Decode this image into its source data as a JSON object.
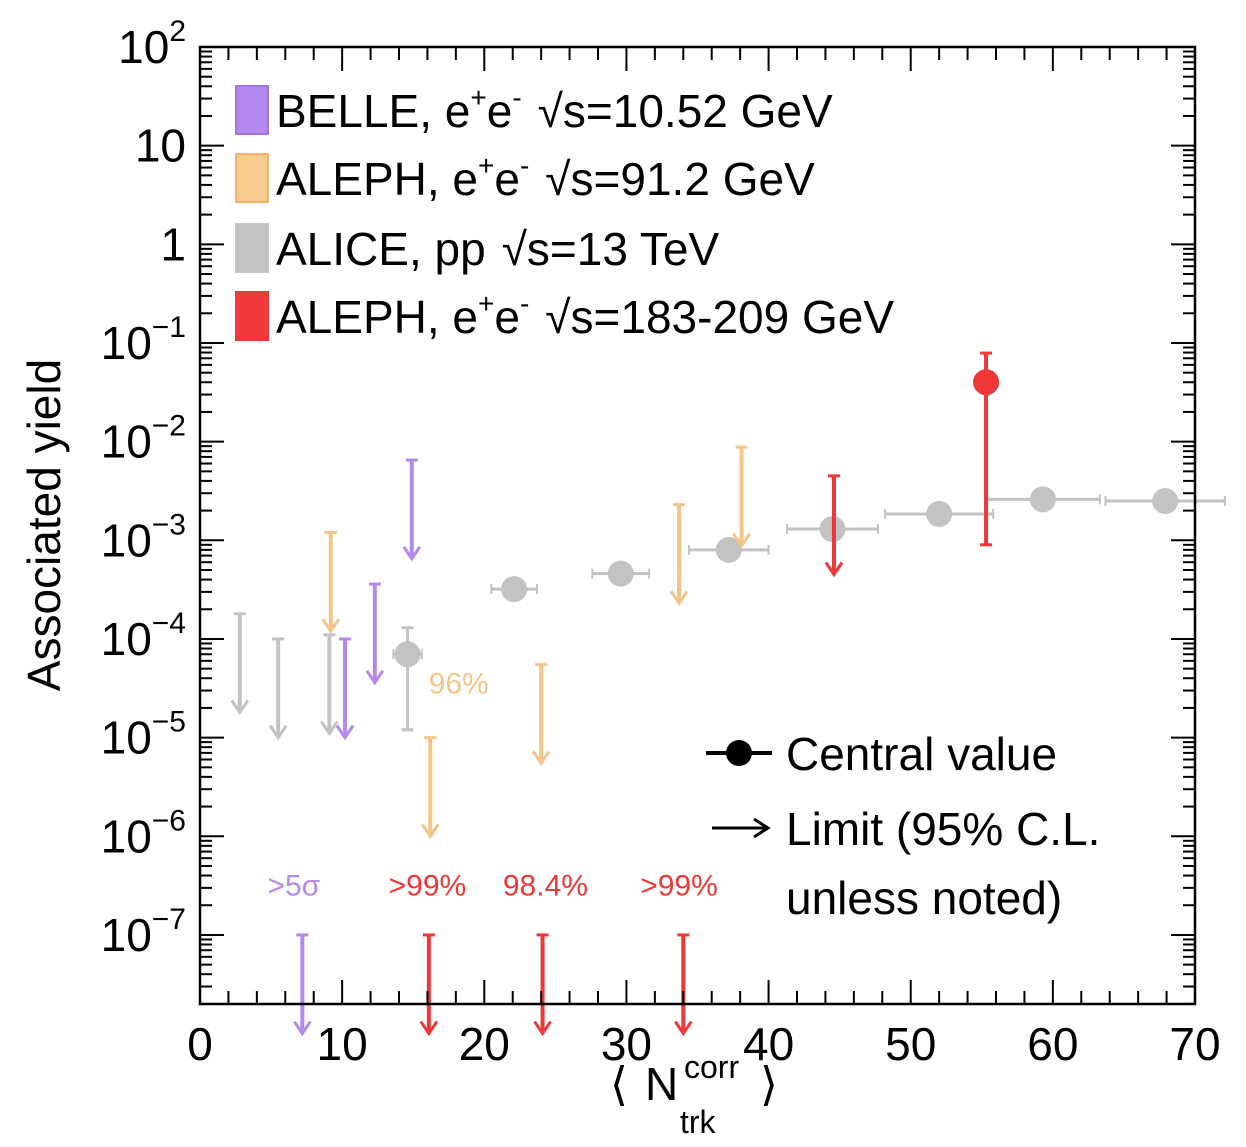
{
  "chart_data": {
    "type": "scatter",
    "title": "",
    "xlabel": "⟨ N_trk^corr ⟩",
    "xlabel_parts": {
      "open": "⟨",
      "main": "N",
      "sup": "corr",
      "sub": "trk",
      "close": "⟩"
    },
    "ylabel": "Associated yield",
    "xlim": [
      0,
      70
    ],
    "ylim_log10": [
      -7.7,
      2
    ],
    "yscale": "log",
    "x_ticks": [
      "0",
      "10",
      "20",
      "30",
      "40",
      "50",
      "60",
      "70"
    ],
    "x_tick_values": [
      0,
      10,
      20,
      30,
      40,
      50,
      60,
      70
    ],
    "y_ticks": [
      {
        "exp": 2,
        "base": "10",
        "sup": "2"
      },
      {
        "exp": 1,
        "base": "10",
        "sup": ""
      },
      {
        "exp": 0,
        "base": "1",
        "sup": ""
      },
      {
        "exp": -1,
        "base": "10",
        "sup": "−1"
      },
      {
        "exp": -2,
        "base": "10",
        "sup": "−2"
      },
      {
        "exp": -3,
        "base": "10",
        "sup": "−3"
      },
      {
        "exp": -4,
        "base": "10",
        "sup": "−4"
      },
      {
        "exp": -5,
        "base": "10",
        "sup": "−5"
      },
      {
        "exp": -6,
        "base": "10",
        "sup": "−6"
      },
      {
        "exp": -7,
        "base": "10",
        "sup": "−7"
      }
    ],
    "series": [
      {
        "name": "ALICE",
        "color": "#c3c3c3",
        "points": [
          {
            "x": 14.6,
            "y": 7e-05,
            "xerr": 1.0,
            "ylo": 1.2e-05,
            "yhi": 0.00013
          },
          {
            "x": 22.1,
            "y": 0.00032,
            "xerr": 1.6,
            "ylo": 0.00025,
            "yhi": 0.0004
          },
          {
            "x": 29.6,
            "y": 0.00046,
            "xerr": 2.0,
            "ylo": 0.0004,
            "yhi": 0.00053
          },
          {
            "x": 37.2,
            "y": 0.0008,
            "xerr": 2.8,
            "ylo": 0.0007,
            "yhi": 0.0009
          },
          {
            "x": 44.5,
            "y": 0.0013,
            "xerr": 3.2,
            "ylo": 0.00115,
            "yhi": 0.00145
          },
          {
            "x": 52.0,
            "y": 0.00185,
            "xerr": 3.8,
            "ylo": 0.00165,
            "yhi": 0.00205
          },
          {
            "x": 59.3,
            "y": 0.0026,
            "xerr": 4.0,
            "ylo": 0.0024,
            "yhi": 0.0028
          },
          {
            "x": 67.9,
            "y": 0.0025,
            "xerr": 4.2,
            "ylo": 0.0023,
            "yhi": 0.0027
          }
        ],
        "limits": [
          {
            "x": 2.8,
            "top": 0.00018,
            "tip": 1.8e-05
          },
          {
            "x": 5.5,
            "top": 0.0001,
            "tip": 1e-05
          },
          {
            "x": 9.1,
            "top": 0.00011,
            "tip": 1.1e-05
          }
        ]
      },
      {
        "name": "BELLE",
        "color": "#b389ed",
        "points": [],
        "limits": [
          {
            "x": 10.2,
            "top": 0.0001,
            "tip": 1e-05
          },
          {
            "x": 12.3,
            "top": 0.00036,
            "tip": 3.6e-05
          },
          {
            "x": 14.9,
            "top": 0.0065,
            "tip": 0.00065
          },
          {
            "x": 7.2,
            "top": 1e-07,
            "tip": 1e-08
          }
        ]
      },
      {
        "name": "ALEPH 91.2",
        "color": "#f4c589",
        "points": [],
        "limits": [
          {
            "x": 9.2,
            "top": 0.0012,
            "tip": 0.00012
          },
          {
            "x": 16.2,
            "top": 1e-05,
            "tip": 1e-06
          },
          {
            "x": 24.0,
            "top": 5.5e-05,
            "tip": 5.5e-06
          },
          {
            "x": 33.7,
            "top": 0.0023,
            "tip": 0.00023
          },
          {
            "x": 38.1,
            "top": 0.0088,
            "tip": 0.00088
          }
        ]
      },
      {
        "name": "ALEPH 183-209",
        "color": "#ee3838",
        "points": [
          {
            "x": 55.3,
            "y": 0.04,
            "xerr": 0,
            "ylo": 0.0009,
            "yhi": 0.079
          }
        ],
        "limits": [
          {
            "x": 44.6,
            "top": 0.0045,
            "tip": 0.00045
          },
          {
            "x": 16.1,
            "top": 1e-07,
            "tip": 1e-08
          },
          {
            "x": 24.1,
            "top": 1e-07,
            "tip": 1e-08
          },
          {
            "x": 34.0,
            "top": 1e-07,
            "tip": 1e-08
          }
        ]
      }
    ],
    "annotations": [
      {
        "text": "96%",
        "x": 18.2,
        "y": 2.8e-05,
        "color": "#f4c589"
      },
      {
        "text": ">5σ",
        "x": 6.6,
        "y": 2.5e-07,
        "color": "#b389ed"
      },
      {
        "text": ">99%",
        "x": 16.0,
        "y": 2.5e-07,
        "color": "#ee3838"
      },
      {
        "text": "98.4%",
        "x": 24.3,
        "y": 2.5e-07,
        "color": "#ee3838"
      },
      {
        "text": ">99%",
        "x": 33.7,
        "y": 2.5e-07,
        "color": "#ee3838"
      }
    ],
    "legend": {
      "placement": "top-left",
      "entries": [
        {
          "label": "BELLE, e",
          "sup1": "+",
          "mid": "e",
          "sup2": "-",
          "sqrt": "√s=10.52 GeV",
          "color": "#b389ed",
          "edge": "#a073e0"
        },
        {
          "label": "ALEPH, e",
          "sup1": "+",
          "mid": "e",
          "sup2": "-",
          "sqrt": "√s=91.2 GeV",
          "color": "#f9cb8f",
          "edge": "#f0b56a"
        },
        {
          "label": "ALICE, pp",
          "sup1": "",
          "mid": "",
          "sup2": "",
          "sqrt": "√s=13 TeV",
          "color": "#c3c3c3",
          "edge": "#c3c3c3"
        },
        {
          "label": "ALEPH, e",
          "sup1": "+",
          "mid": "e",
          "sup2": "-",
          "sqrt": "√s=183-209 GeV",
          "color": "#f03a3a",
          "edge": "#f03a3a"
        }
      ]
    },
    "key": {
      "central": "Central value",
      "limit_line1": "Limit (95% C.L.",
      "limit_line2": "unless noted)"
    }
  }
}
